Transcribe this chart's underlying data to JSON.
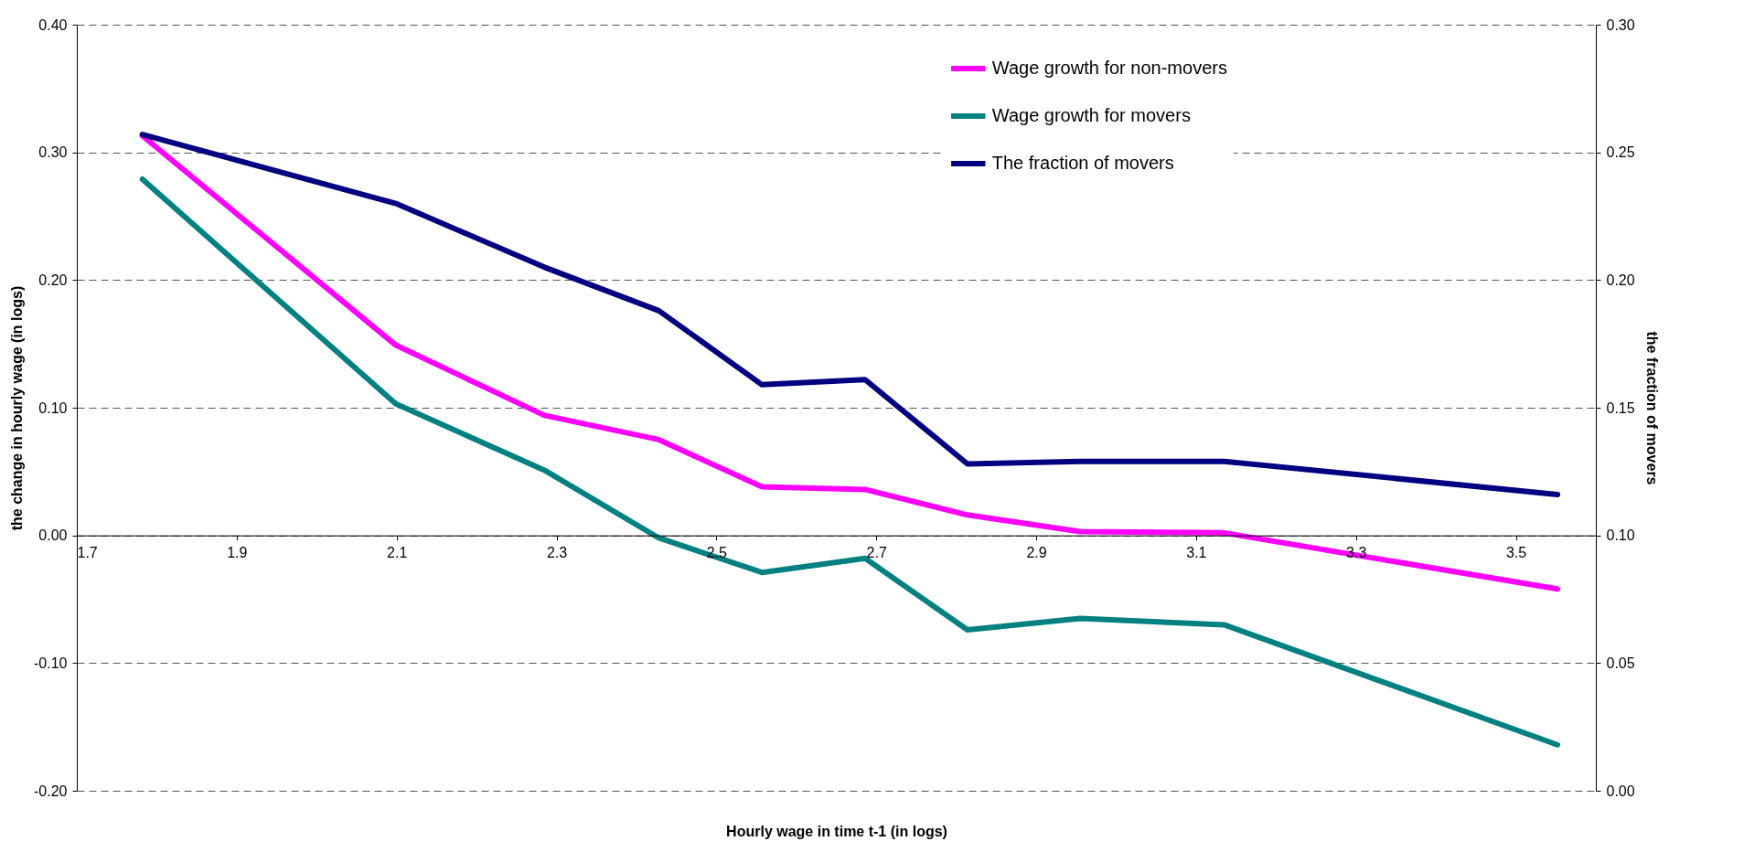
{
  "chart_data": {
    "type": "line",
    "xlabel": "Hourly wage in time t-1 (in logs)",
    "ylabel": "the change in hourly wage (in logs)",
    "y2label": "the fraction of movers",
    "x": [
      1.782,
      2.099,
      2.285,
      2.428,
      2.557,
      2.686,
      2.814,
      2.955,
      3.135,
      3.552
    ],
    "series": [
      {
        "name": "Wage growth for non-movers",
        "color": "#ff00ff",
        "values": [
          0.313,
          0.149,
          0.094,
          0.075,
          0.038,
          0.036,
          0.016,
          0.003,
          0.002,
          -0.042
        ]
      },
      {
        "name": "Wage growth for movers",
        "color": "#008080",
        "values": [
          0.279,
          0.103,
          0.051,
          -0.002,
          -0.029,
          -0.018,
          -0.074,
          -0.065,
          -0.07,
          -0.164
        ]
      },
      {
        "name": "The fraction of movers",
        "color": "#000080",
        "axis": "y2",
        "values": [
          0.257,
          0.23,
          0.205,
          0.188,
          0.159,
          0.161,
          0.128,
          0.129,
          0.129,
          0.116
        ]
      }
    ],
    "xlim": [
      1.7,
      3.6
    ],
    "xticks": [
      1.7,
      1.9,
      2.1,
      2.3,
      2.5,
      2.7,
      2.9,
      3.1,
      3.3,
      3.5
    ],
    "ylim": [
      -0.2,
      0.4
    ],
    "yticks": [
      {
        "value": -0.2,
        "label": "-0.20"
      },
      {
        "value": -0.1,
        "label": "-0.10"
      },
      {
        "value": 0,
        "label": "0.00"
      },
      {
        "value": 0.1,
        "label": "0.10"
      },
      {
        "value": 0.2,
        "label": "0.20"
      },
      {
        "value": 0.3,
        "label": "0.30"
      },
      {
        "value": 0.4,
        "label": "0.40"
      }
    ],
    "y2lim": [
      0,
      0.3
    ],
    "y2ticks": [
      {
        "value": 0,
        "label": "0.00"
      },
      {
        "value": 0.05,
        "label": "0.05"
      },
      {
        "value": 0.1,
        "label": "0.10"
      },
      {
        "value": 0.15,
        "label": "0.15"
      },
      {
        "value": 0.2,
        "label": "0.20"
      },
      {
        "value": 0.25,
        "label": "0.25"
      },
      {
        "value": 0.3,
        "label": "0.30"
      }
    ],
    "grid": "y",
    "legend": "top right",
    "line_style": "solid",
    "marker": "none"
  }
}
